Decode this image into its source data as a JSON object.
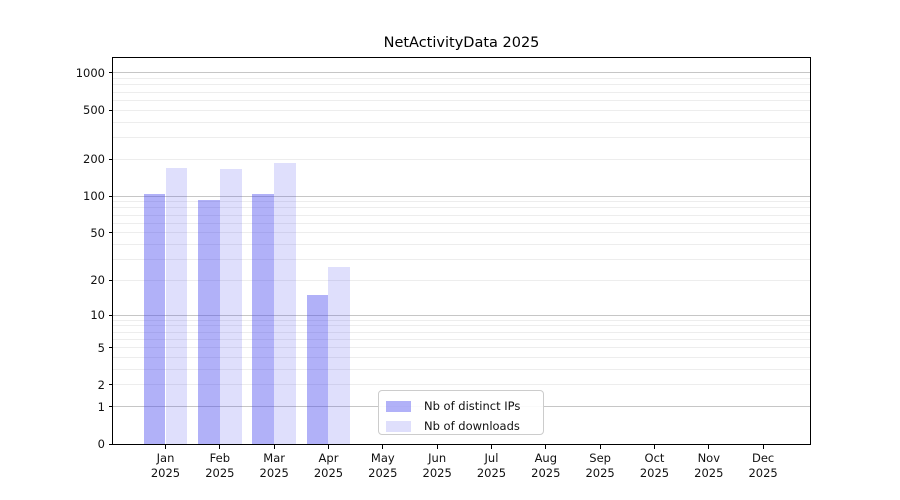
{
  "chart_data": {
    "type": "bar",
    "title": "NetActivityData 2025",
    "categories": [
      "Jan",
      "Feb",
      "Mar",
      "Apr",
      "May",
      "Jun",
      "Jul",
      "Aug",
      "Sep",
      "Oct",
      "Nov",
      "Dec"
    ],
    "year": "2025",
    "series": [
      {
        "name": "Nb of distinct IPs",
        "color": "rgba(68,68,238,0.42)",
        "values": [
          105,
          93,
          105,
          15,
          0,
          0,
          0,
          0,
          0,
          0,
          0,
          0
        ]
      },
      {
        "name": "Nb of downloads",
        "color": "rgba(68,68,238,0.17)",
        "values": [
          168,
          166,
          187,
          26,
          0,
          0,
          0,
          0,
          0,
          0,
          0,
          0
        ]
      }
    ],
    "xlabel": "",
    "ylabel": "",
    "yscale": "log10(1+v)",
    "y_ticks": [
      0,
      1,
      2,
      5,
      10,
      20,
      50,
      100,
      200,
      500,
      1000
    ],
    "ylim": [
      0,
      1320
    ],
    "grid": true,
    "legend_position": "lower center inside plot"
  },
  "colors": {
    "major_grid": "#c6c6c6",
    "minor_grid": "#ededed",
    "spine": "#000000",
    "text": "#111111",
    "legend_border": "#cccccc",
    "background": "#ffffff"
  }
}
